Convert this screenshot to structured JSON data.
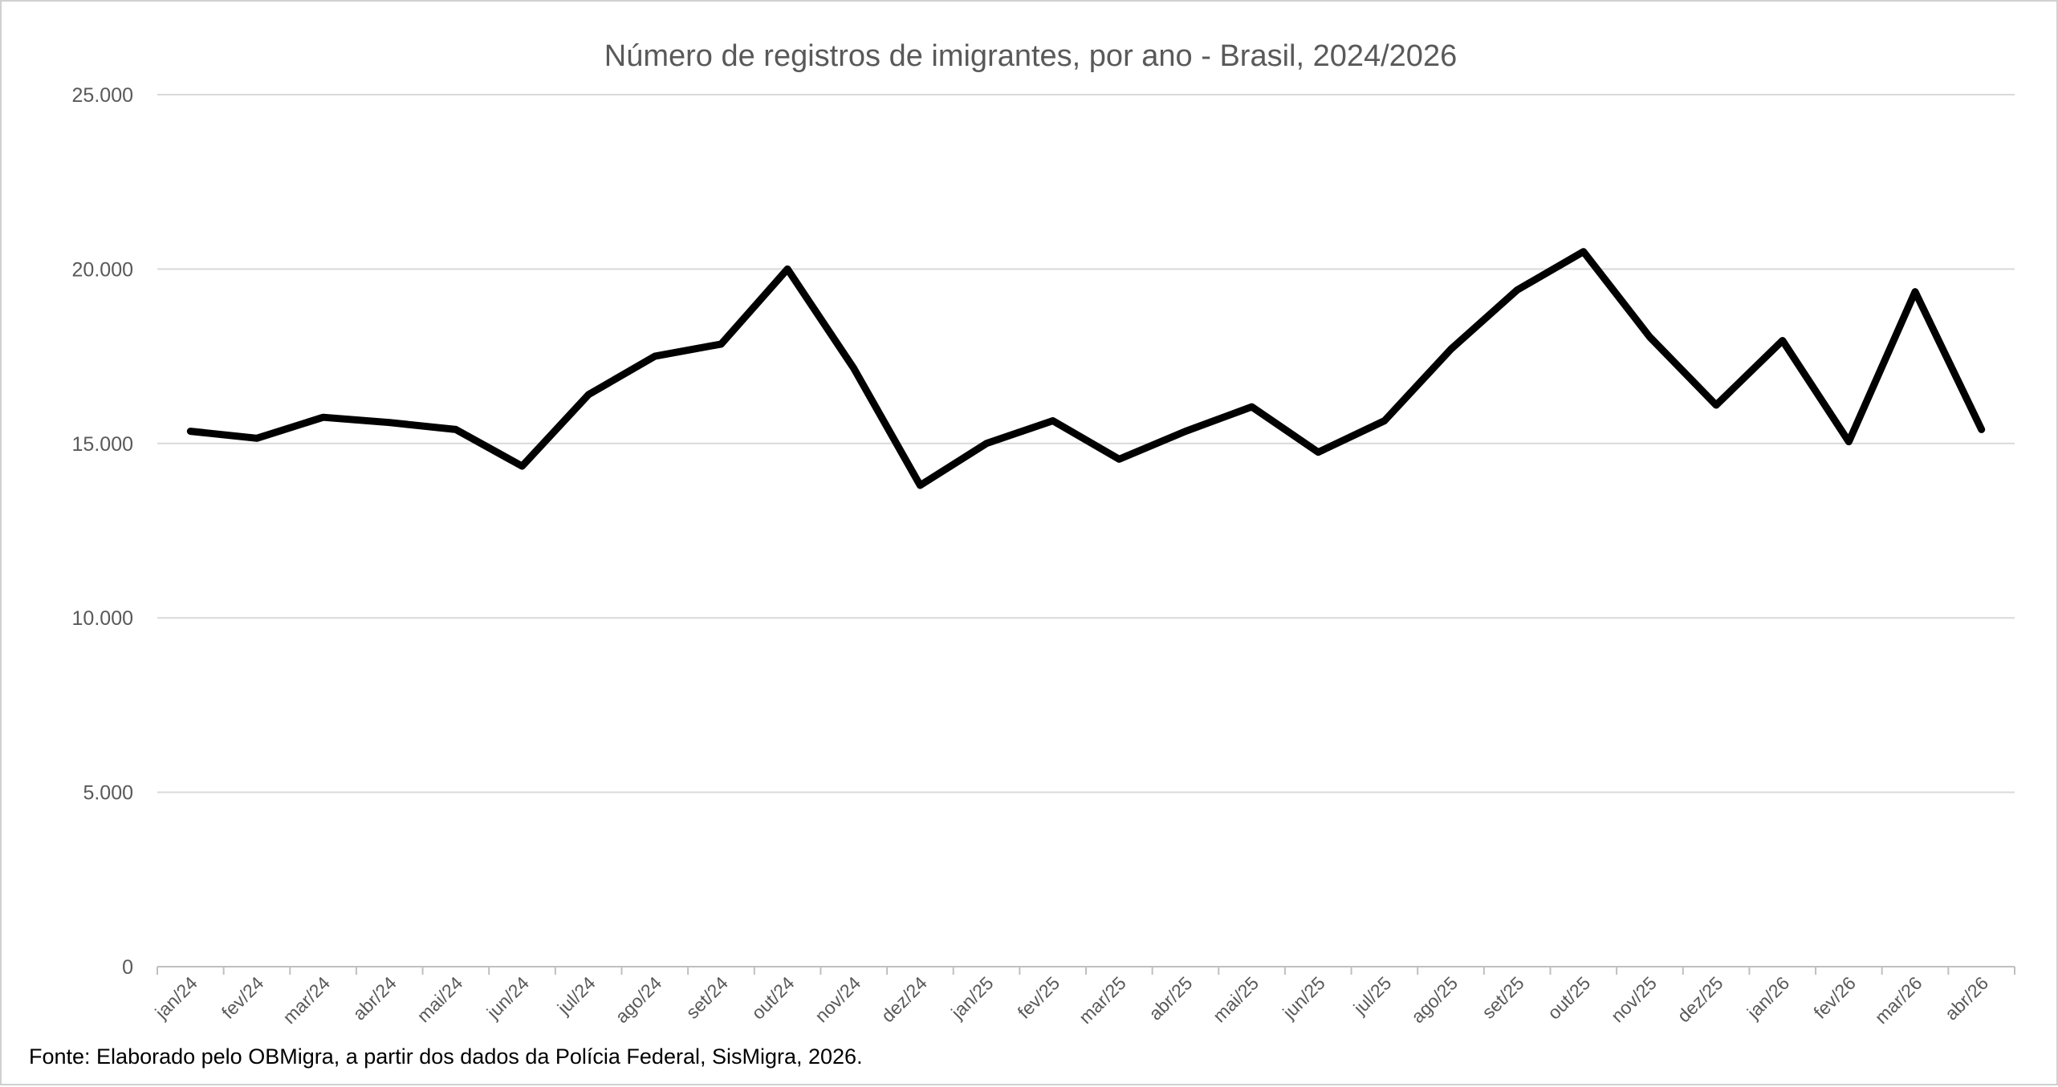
{
  "chart_data": {
    "type": "line",
    "title": "Número de registros de imigrantes, por ano - Brasil, 2024/2026",
    "xlabel": "",
    "ylabel": "",
    "categories": [
      "jan/24",
      "fev/24",
      "mar/24",
      "abr/24",
      "mai/24",
      "jun/24",
      "jul/24",
      "ago/24",
      "set/24",
      "out/24",
      "nov/24",
      "dez/24",
      "jan/25",
      "fev/25",
      "mar/25",
      "abr/25",
      "mai/25",
      "jun/25",
      "jul/25",
      "ago/25",
      "set/25",
      "out/25",
      "nov/25",
      "dez/25",
      "jan/26",
      "fev/26",
      "mar/26",
      "abr/26"
    ],
    "series": [
      {
        "values": [
          15350,
          15150,
          15750,
          15600,
          15400,
          14350,
          16400,
          17500,
          17850,
          20000,
          17150,
          13800,
          15000,
          15650,
          14550,
          15350,
          16050,
          14750,
          15650,
          17700,
          19400,
          20500,
          18050,
          16100,
          17950,
          15050,
          19350,
          15400
        ],
        "color": "#000000"
      }
    ],
    "ylim": [
      0,
      25000
    ],
    "yticks": [
      0,
      5000,
      10000,
      15000,
      20000,
      25000
    ],
    "ytick_labels": [
      "0",
      "5.000",
      "10.000",
      "15.000",
      "20.000",
      "25.000"
    ],
    "grid": true,
    "legend": "none"
  },
  "source_note": "Fonte: Elaborado pelo OBMigra, a partir dos dados da Polícia Federal, SisMigra, 2026."
}
